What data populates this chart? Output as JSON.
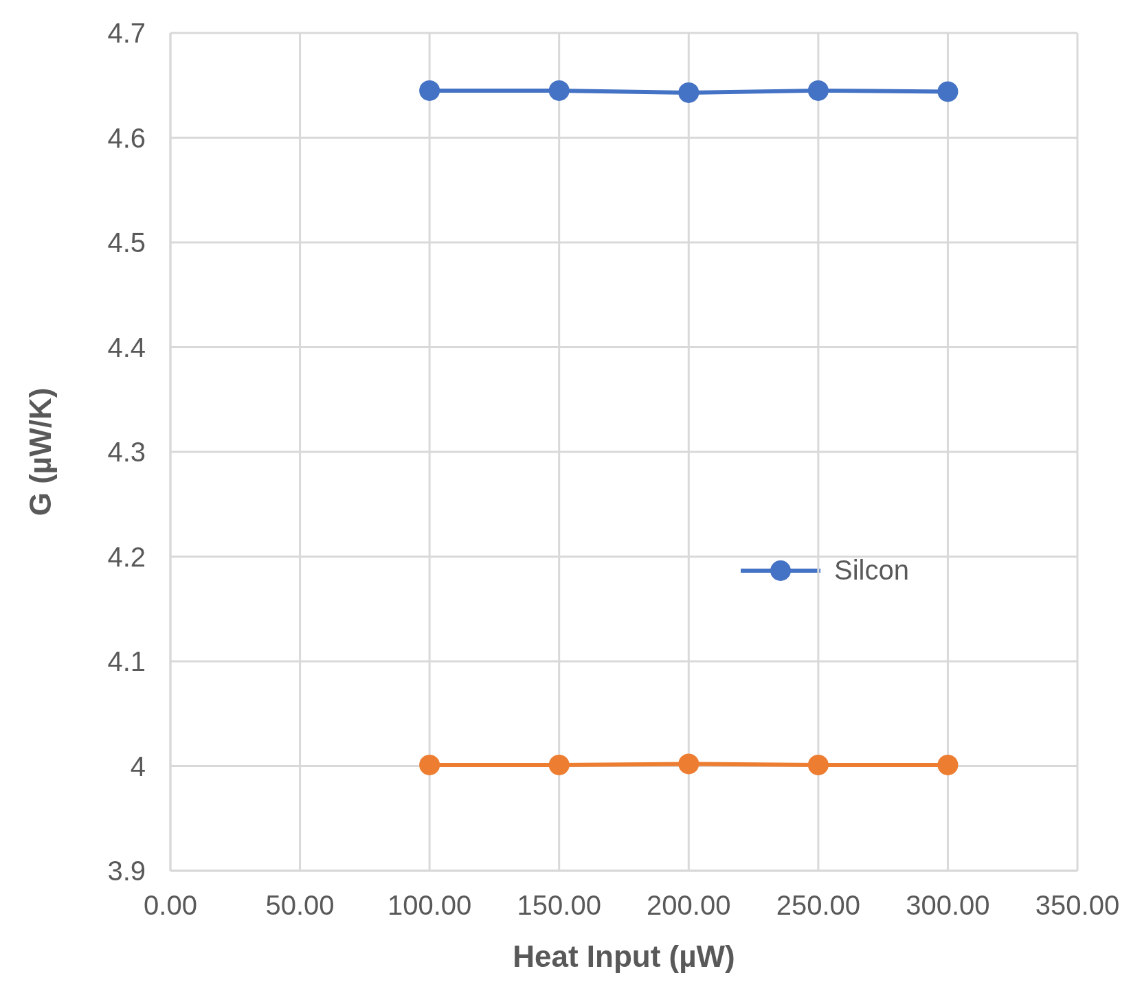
{
  "chart_data": {
    "type": "line",
    "xlabel": "Heat Input (µW)",
    "ylabel": "G (µW/K)",
    "x": [
      100,
      150,
      200,
      250,
      300
    ],
    "series": [
      {
        "name": "Silcon",
        "color": "#4472c4",
        "values": [
          4.645,
          4.645,
          4.643,
          4.645,
          4.644
        ]
      },
      {
        "color": "#ed7d31",
        "values": [
          4.001,
          4.001,
          4.002,
          4.001,
          4.001
        ]
      }
    ],
    "xlim": [
      0,
      350
    ],
    "xticks": [
      {
        "value": 0,
        "label": "0.00"
      },
      {
        "value": 50,
        "label": "50.00"
      },
      {
        "value": 100,
        "label": "100.00"
      },
      {
        "value": 150,
        "label": "150.00"
      },
      {
        "value": 200,
        "label": "200.00"
      },
      {
        "value": 250,
        "label": "250.00"
      },
      {
        "value": 300,
        "label": "300.00"
      },
      {
        "value": 350,
        "label": "350.00"
      }
    ],
    "ylim": [
      3.9,
      4.7
    ],
    "yticks": [
      3.9,
      4,
      4.1,
      4.2,
      4.3,
      4.4,
      4.5,
      4.6,
      4.7
    ],
    "grid": true,
    "legend": "right",
    "marker": "circle",
    "line_style": "solid"
  }
}
